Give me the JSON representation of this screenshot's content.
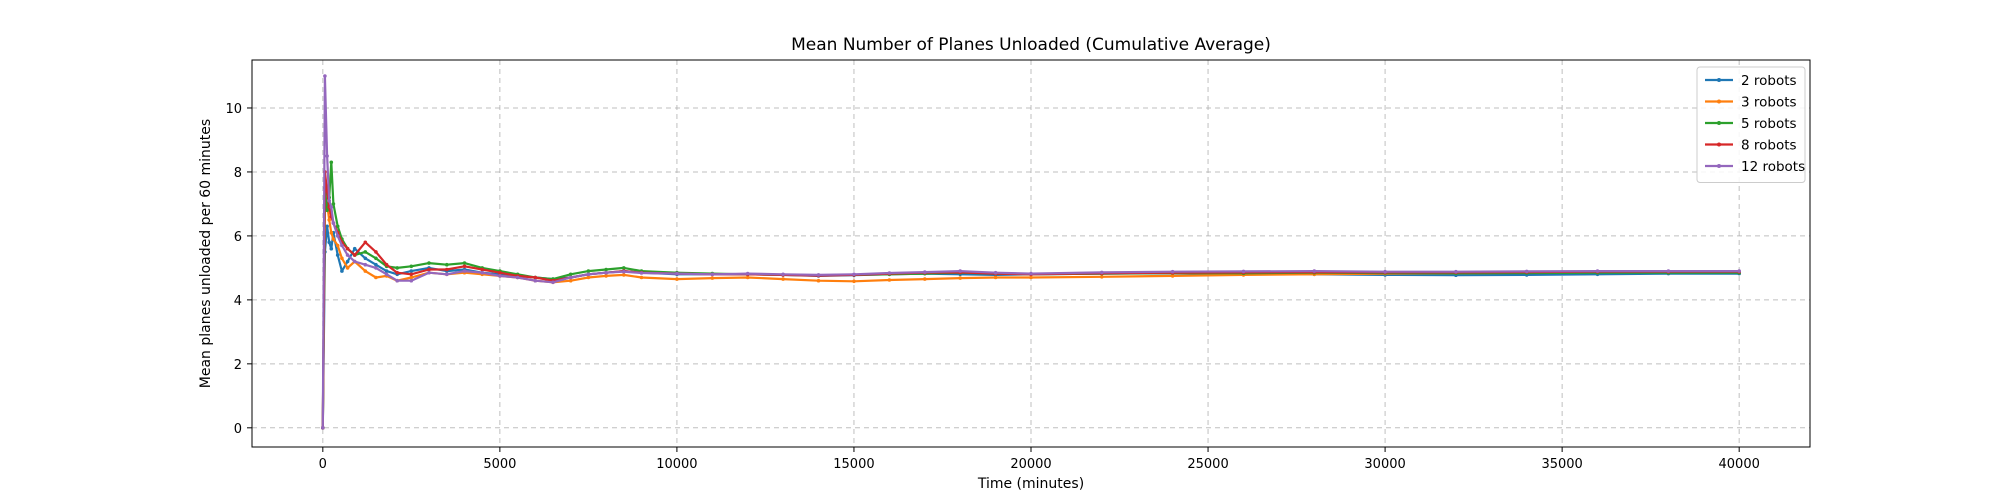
{
  "chart_data": {
    "type": "line",
    "title": "Mean Number of Planes Unloaded (Cumulative Average)",
    "xlabel": "Time (minutes)",
    "ylabel": "Mean planes unloaded per 60 minutes",
    "xlim": [
      -2000,
      42000
    ],
    "ylim": [
      -0.6,
      11.5
    ],
    "xticks": [
      0,
      5000,
      10000,
      15000,
      20000,
      25000,
      30000,
      35000,
      40000
    ],
    "xtick_labels": [
      "0",
      "5000",
      "10000",
      "15000",
      "20000",
      "25000",
      "30000",
      "35000",
      "40000"
    ],
    "yticks": [
      0,
      2,
      4,
      6,
      8,
      10
    ],
    "ytick_labels": [
      "0",
      "2",
      "4",
      "6",
      "8",
      "10"
    ],
    "grid": true,
    "legend_position": "top-right",
    "series": [
      {
        "name": "2 robots",
        "color": "#1f77b4",
        "x": [
          0,
          60,
          120,
          180,
          240,
          300,
          420,
          540,
          700,
          900,
          1200,
          1500,
          1800,
          2100,
          2500,
          3000,
          3500,
          4000,
          4500,
          5000,
          5500,
          6000,
          6500,
          7000,
          7500,
          8000,
          8500,
          9000,
          10000,
          11000,
          12000,
          13000,
          14000,
          15000,
          16000,
          17000,
          18000,
          19000,
          20000,
          22000,
          24000,
          26000,
          28000,
          30000,
          32000,
          34000,
          36000,
          38000,
          40000
        ],
        "values": [
          0,
          5.5,
          6.3,
          5.8,
          5.6,
          6.1,
          5.4,
          4.9,
          5.2,
          5.6,
          5.3,
          5.1,
          4.9,
          4.8,
          4.9,
          5.0,
          4.9,
          4.95,
          4.85,
          4.8,
          4.75,
          4.7,
          4.65,
          4.7,
          4.8,
          4.85,
          4.9,
          4.85,
          4.8,
          4.8,
          4.8,
          4.78,
          4.75,
          4.77,
          4.8,
          4.82,
          4.8,
          4.78,
          4.8,
          4.82,
          4.83,
          4.82,
          4.8,
          4.78,
          4.77,
          4.78,
          4.8,
          4.82,
          4.82
        ]
      },
      {
        "name": "3 robots",
        "color": "#ff7f0e",
        "x": [
          0,
          60,
          120,
          180,
          240,
          300,
          420,
          540,
          700,
          900,
          1200,
          1500,
          1800,
          2100,
          2500,
          3000,
          3500,
          4000,
          4500,
          5000,
          5500,
          6000,
          6500,
          7000,
          7500,
          8000,
          8500,
          9000,
          10000,
          11000,
          12000,
          13000,
          14000,
          15000,
          16000,
          17000,
          18000,
          19000,
          20000,
          22000,
          24000,
          26000,
          28000,
          30000,
          32000,
          34000,
          36000,
          38000,
          40000
        ],
        "values": [
          0,
          6.8,
          7.0,
          6.5,
          6.1,
          5.9,
          5.7,
          5.3,
          5.0,
          5.2,
          4.9,
          4.7,
          4.75,
          4.6,
          4.7,
          4.85,
          4.8,
          4.85,
          4.8,
          4.75,
          4.7,
          4.6,
          4.55,
          4.6,
          4.7,
          4.75,
          4.78,
          4.7,
          4.65,
          4.68,
          4.7,
          4.65,
          4.6,
          4.58,
          4.62,
          4.65,
          4.68,
          4.7,
          4.7,
          4.72,
          4.75,
          4.78,
          4.8,
          4.82,
          4.83,
          4.85,
          4.86,
          4.86,
          4.87
        ]
      },
      {
        "name": "5 robots",
        "color": "#2ca02c",
        "x": [
          0,
          60,
          120,
          180,
          240,
          300,
          420,
          540,
          700,
          900,
          1200,
          1500,
          1800,
          2100,
          2500,
          3000,
          3500,
          4000,
          4500,
          5000,
          5500,
          6000,
          6500,
          7000,
          7500,
          8000,
          8500,
          9000,
          10000,
          11000,
          12000,
          13000,
          14000,
          15000,
          16000,
          17000,
          18000,
          19000,
          20000,
          22000,
          24000,
          26000,
          28000,
          30000,
          32000,
          34000,
          36000,
          38000,
          40000
        ],
        "values": [
          0,
          7.5,
          6.8,
          7.2,
          8.3,
          7.0,
          6.3,
          5.9,
          5.6,
          5.4,
          5.5,
          5.3,
          5.05,
          5.0,
          5.05,
          5.15,
          5.1,
          5.15,
          5.0,
          4.9,
          4.8,
          4.7,
          4.65,
          4.8,
          4.9,
          4.95,
          5.0,
          4.9,
          4.85,
          4.82,
          4.8,
          4.78,
          4.77,
          4.78,
          4.8,
          4.82,
          4.85,
          4.82,
          4.8,
          4.82,
          4.84,
          4.83,
          4.85,
          4.84,
          4.83,
          4.84,
          4.85,
          4.85,
          4.85
        ]
      },
      {
        "name": "8 robots",
        "color": "#d62728",
        "x": [
          0,
          60,
          120,
          180,
          240,
          300,
          420,
          540,
          700,
          900,
          1200,
          1500,
          1800,
          2100,
          2500,
          3000,
          3500,
          4000,
          4500,
          5000,
          5500,
          6000,
          6500,
          7000,
          7500,
          8000,
          8500,
          9000,
          10000,
          11000,
          12000,
          13000,
          14000,
          15000,
          16000,
          17000,
          18000,
          19000,
          20000,
          22000,
          24000,
          26000,
          28000,
          30000,
          32000,
          34000,
          36000,
          38000,
          40000
        ],
        "values": [
          0,
          8.0,
          7.4,
          6.9,
          6.6,
          6.4,
          6.1,
          5.8,
          5.6,
          5.4,
          5.8,
          5.5,
          5.1,
          4.85,
          4.8,
          4.95,
          4.95,
          5.05,
          4.95,
          4.85,
          4.75,
          4.7,
          4.6,
          4.7,
          4.8,
          4.85,
          4.9,
          4.85,
          4.82,
          4.8,
          4.8,
          4.78,
          4.76,
          4.78,
          4.82,
          4.85,
          4.86,
          4.82,
          4.8,
          4.83,
          4.85,
          4.86,
          4.87,
          4.86,
          4.86,
          4.87,
          4.88,
          4.88,
          4.88
        ]
      },
      {
        "name": "12 robots",
        "color": "#9467bd",
        "x": [
          0,
          60,
          120,
          180,
          240,
          300,
          420,
          540,
          700,
          900,
          1200,
          1500,
          1800,
          2100,
          2500,
          3000,
          3500,
          4000,
          4500,
          5000,
          5500,
          6000,
          6500,
          7000,
          7500,
          8000,
          8500,
          9000,
          10000,
          11000,
          12000,
          13000,
          14000,
          15000,
          16000,
          17000,
          18000,
          19000,
          20000,
          22000,
          24000,
          26000,
          28000,
          30000,
          32000,
          34000,
          36000,
          38000,
          40000
        ],
        "values": [
          0,
          11.0,
          8.5,
          7.1,
          6.9,
          6.4,
          6.0,
          5.7,
          5.4,
          5.2,
          5.1,
          5.0,
          4.8,
          4.6,
          4.6,
          4.85,
          4.8,
          4.9,
          4.85,
          4.75,
          4.7,
          4.6,
          4.55,
          4.7,
          4.8,
          4.85,
          4.88,
          4.84,
          4.82,
          4.8,
          4.82,
          4.8,
          4.78,
          4.8,
          4.84,
          4.87,
          4.9,
          4.85,
          4.82,
          4.86,
          4.88,
          4.89,
          4.9,
          4.88,
          4.88,
          4.89,
          4.9,
          4.9,
          4.9
        ]
      }
    ]
  }
}
